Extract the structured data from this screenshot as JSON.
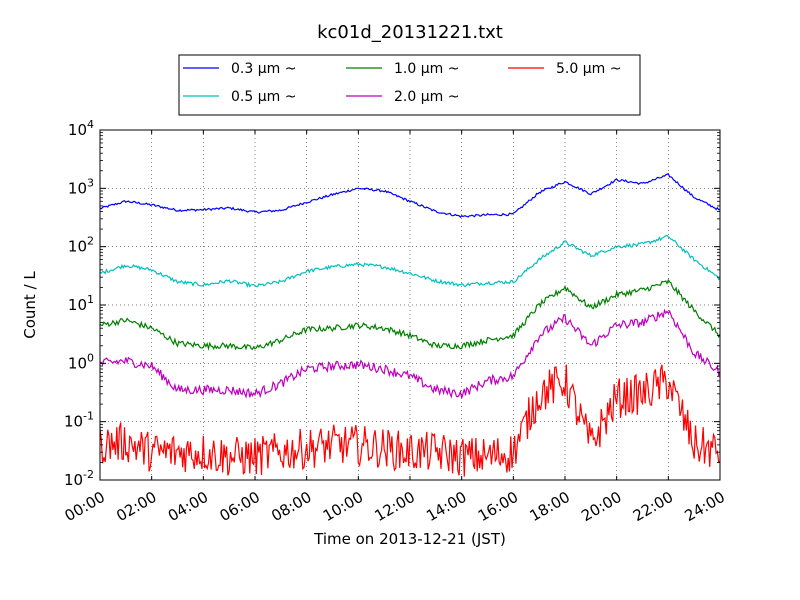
{
  "chart_data": {
    "type": "line",
    "title": "kc01d_20131221.txt",
    "xlabel": "Time on 2013-12-21 (JST)",
    "ylabel": "Count / L",
    "yscale": "log",
    "xlim": [
      "00:00",
      "24:00"
    ],
    "ylim": [
      0.01,
      10000
    ],
    "x_ticks": [
      "00:00",
      "02:00",
      "04:00",
      "06:00",
      "08:00",
      "10:00",
      "12:00",
      "14:00",
      "16:00",
      "18:00",
      "20:00",
      "22:00",
      "24:00"
    ],
    "y_ticks": [
      {
        "base": "10",
        "exp": "-2"
      },
      {
        "base": "10",
        "exp": "-1"
      },
      {
        "base": "10",
        "exp": "0"
      },
      {
        "base": "10",
        "exp": "1"
      },
      {
        "base": "10",
        "exp": "2"
      },
      {
        "base": "10",
        "exp": "3"
      },
      {
        "base": "10",
        "exp": "4"
      }
    ],
    "grid": true,
    "legend_position": "top-center",
    "x": [
      "00:00",
      "01:00",
      "02:00",
      "03:00",
      "04:00",
      "05:00",
      "06:00",
      "07:00",
      "08:00",
      "09:00",
      "10:00",
      "11:00",
      "12:00",
      "13:00",
      "14:00",
      "15:00",
      "16:00",
      "17:00",
      "18:00",
      "19:00",
      "20:00",
      "21:00",
      "22:00",
      "23:00",
      "24:00"
    ],
    "series": [
      {
        "name": "0.3 μm ~",
        "color": "#0000ff",
        "noise": 0.02,
        "values": [
          450,
          600,
          520,
          420,
          430,
          460,
          390,
          420,
          580,
          780,
          1000,
          900,
          600,
          400,
          330,
          350,
          360,
          850,
          1300,
          800,
          1400,
          1200,
          1700,
          700,
          420
        ]
      },
      {
        "name": "0.5 μm ~",
        "color": "#00bfbf",
        "noise": 0.03,
        "values": [
          35,
          48,
          40,
          25,
          22,
          26,
          21,
          25,
          38,
          45,
          50,
          45,
          35,
          26,
          22,
          24,
          25,
          60,
          120,
          70,
          100,
          110,
          150,
          60,
          28
        ]
      },
      {
        "name": "1.0 μm ~",
        "color": "#008000",
        "noise": 0.05,
        "values": [
          4.5,
          5.5,
          4.0,
          2.2,
          2.0,
          2.0,
          1.8,
          2.5,
          3.8,
          4.0,
          4.5,
          4.0,
          3.0,
          2.0,
          2.0,
          2.5,
          3.0,
          10,
          20,
          9,
          15,
          18,
          25,
          8,
          3.0
        ]
      },
      {
        "name": "2.0 μm ~",
        "color": "#bf00bf",
        "noise": 0.08,
        "values": [
          1.0,
          1.1,
          0.9,
          0.35,
          0.35,
          0.35,
          0.3,
          0.45,
          0.8,
          0.9,
          0.95,
          0.8,
          0.6,
          0.35,
          0.3,
          0.5,
          0.6,
          3.0,
          6.0,
          2.0,
          4.5,
          5.0,
          8.0,
          1.5,
          0.7
        ]
      },
      {
        "name": "5.0 μm ~",
        "color": "#ff0000",
        "noise": 0.35,
        "values": [
          0.04,
          0.045,
          0.03,
          0.03,
          0.03,
          0.025,
          0.025,
          0.03,
          0.035,
          0.04,
          0.04,
          0.035,
          0.03,
          0.03,
          0.025,
          0.025,
          0.03,
          0.3,
          0.5,
          0.04,
          0.25,
          0.3,
          0.5,
          0.04,
          0.03
        ]
      }
    ]
  }
}
